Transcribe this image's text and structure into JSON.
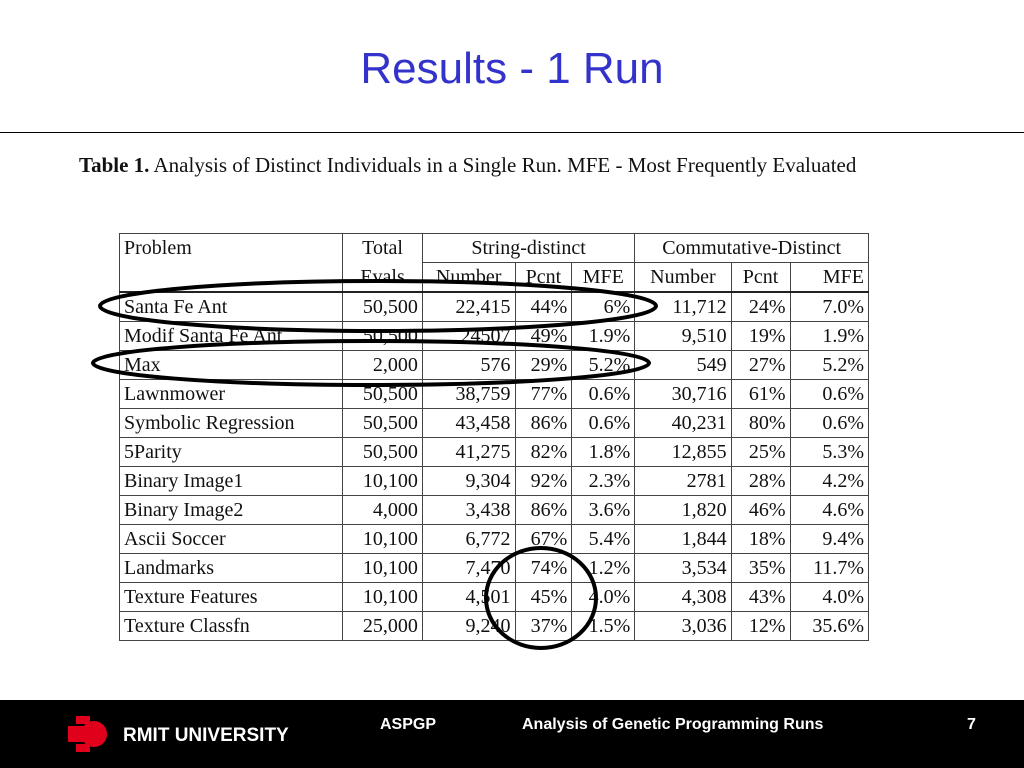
{
  "slide": {
    "title": "Results - 1 Run",
    "caption_label": "Table 1.",
    "caption_text": "Analysis of Distinct Individuals in a Single Run. MFE - Most Frequently Evaluated"
  },
  "table": {
    "headers": {
      "problem": "Problem",
      "total_top": "Total",
      "total_bottom": "Evals",
      "string_group": "String-distinct",
      "comm_group": "Commutative-Distinct",
      "sub": [
        "Number",
        "Pcnt",
        "MFE",
        "Number",
        "Pcnt",
        "MFE"
      ]
    },
    "rows": [
      [
        "Santa Fe Ant",
        "50,500",
        "22,415",
        "44%",
        "6%",
        "11,712",
        "24%",
        "7.0%"
      ],
      [
        "Modif Santa Fe Ant",
        "50,500",
        "24507",
        "49%",
        "1.9%",
        "9,510",
        "19%",
        "1.9%"
      ],
      [
        "Max",
        "2,000",
        "576",
        "29%",
        "5.2%",
        "549",
        "27%",
        "5.2%"
      ],
      [
        "Lawnmower",
        "50,500",
        "38,759",
        "77%",
        "0.6%",
        "30,716",
        "61%",
        "0.6%"
      ],
      [
        "Symbolic Regression",
        "50,500",
        "43,458",
        "86%",
        "0.6%",
        "40,231",
        "80%",
        "0.6%"
      ],
      [
        "5Parity",
        "50,500",
        "41,275",
        "82%",
        "1.8%",
        "12,855",
        "25%",
        "5.3%"
      ],
      [
        "Binary Image1",
        "10,100",
        "9,304",
        "92%",
        "2.3%",
        "2781",
        "28%",
        "4.2%"
      ],
      [
        "Binary Image2",
        "4,000",
        "3,438",
        "86%",
        "3.6%",
        "1,820",
        "46%",
        "4.6%"
      ],
      [
        "Ascii Soccer",
        "10,100",
        "6,772",
        "67%",
        "5.4%",
        "1,844",
        "18%",
        "9.4%"
      ],
      [
        "Landmarks",
        "10,100",
        "7,470",
        "74%",
        "1.2%",
        "3,534",
        "35%",
        "11.7%"
      ],
      [
        "Texture Features",
        "10,100",
        "4,501",
        "45%",
        "4.0%",
        "4,308",
        "43%",
        "4.0%"
      ],
      [
        "Texture Classfn",
        "25,000",
        "9,240",
        "37%",
        "1.5%",
        "3,036",
        "12%",
        "35.6%"
      ]
    ]
  },
  "footer": {
    "university": "RMIT UNIVERSITY",
    "course": "ASPGP",
    "topic": "Analysis of Genetic Programming Runs",
    "page": "7"
  },
  "colors": {
    "title": "#3333cc",
    "logo": "#e0001b",
    "footer_bg": "#000000"
  }
}
